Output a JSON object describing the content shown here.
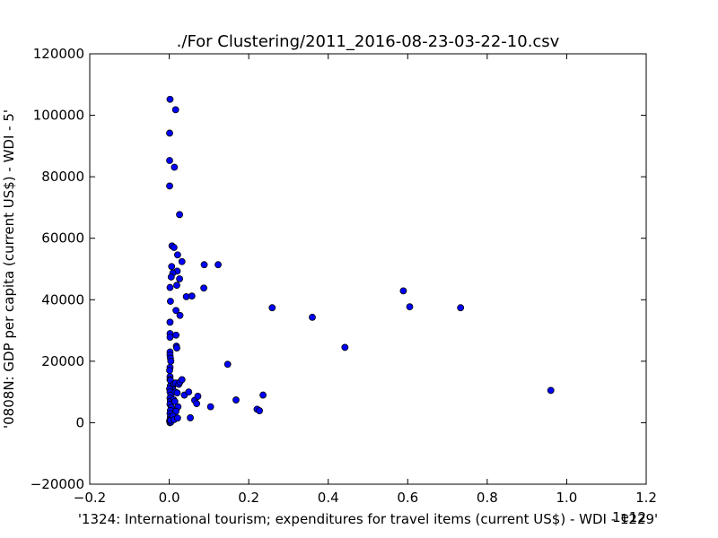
{
  "chart_data": {
    "type": "scatter",
    "title": "./For Clustering/2011_2016-08-23-03-22-10.csv",
    "xlabel": "'1324: International tourism; expenditures for travel items  (current US$) - WDI - 1229'",
    "ylabel": "'0808N: GDP per capita  (current US$) - WDI - 5'",
    "x_offset_label": "1e12",
    "xlim": [
      -0.2,
      1.2
    ],
    "ylim": [
      -20000,
      120000
    ],
    "x_ticks": [
      "−0.2",
      "0.0",
      "0.2",
      "0.4",
      "0.6",
      "0.8",
      "1.0",
      "1.2"
    ],
    "y_ticks": [
      "−20000",
      "0",
      "20000",
      "40000",
      "60000",
      "80000",
      "100000",
      "120000"
    ],
    "grid": false,
    "marker_color": "#0000ff",
    "points": [
      [
        0.002,
        105200
      ],
      [
        0.016,
        101800
      ],
      [
        0.001,
        94200
      ],
      [
        0.001,
        85300
      ],
      [
        0.013,
        83100
      ],
      [
        0.001,
        77000
      ],
      [
        0.026,
        67700
      ],
      [
        0.007,
        57500
      ],
      [
        0.012,
        57000
      ],
      [
        0.021,
        54600
      ],
      [
        0.032,
        52400
      ],
      [
        0.088,
        51400
      ],
      [
        0.123,
        51400
      ],
      [
        0.006,
        50800
      ],
      [
        0.02,
        49300
      ],
      [
        0.009,
        48700
      ],
      [
        0.005,
        47400
      ],
      [
        0.026,
        46800
      ],
      [
        0.019,
        44700
      ],
      [
        0.002,
        44000
      ],
      [
        0.087,
        43800
      ],
      [
        0.043,
        41000
      ],
      [
        0.057,
        41200
      ],
      [
        0.003,
        39500
      ],
      [
        0.017,
        36500
      ],
      [
        0.027,
        34900
      ],
      [
        0.002,
        32700
      ],
      [
        0.002,
        29000
      ],
      [
        0.002,
        27800
      ],
      [
        0.017,
        28500
      ],
      [
        0.018,
        24900
      ],
      [
        0.019,
        24300
      ],
      [
        0.002,
        23000
      ],
      [
        0.002,
        22000
      ],
      [
        0.003,
        21000
      ],
      [
        0.004,
        20000
      ],
      [
        0.002,
        18000
      ],
      [
        0.001,
        17000
      ],
      [
        0.002,
        15000
      ],
      [
        0.002,
        14000
      ],
      [
        0.006,
        13000
      ],
      [
        0.003,
        12000
      ],
      [
        0.008,
        11500
      ],
      [
        0.001,
        11000
      ],
      [
        0.002,
        10000
      ],
      [
        0.004,
        9000
      ],
      [
        0.002,
        8000
      ],
      [
        0.003,
        7000
      ],
      [
        0.002,
        6000
      ],
      [
        0.005,
        5000
      ],
      [
        0.003,
        4000
      ],
      [
        0.002,
        3000
      ],
      [
        0.003,
        2000
      ],
      [
        0.002,
        1000
      ],
      [
        0.001,
        500
      ],
      [
        0.002,
        0
      ],
      [
        0.004,
        200
      ],
      [
        0.003,
        800
      ],
      [
        0.003,
        13800
      ],
      [
        0.012,
        12600
      ],
      [
        0.016,
        12900
      ],
      [
        0.024,
        12500
      ],
      [
        0.027,
        13200
      ],
      [
        0.032,
        14000
      ],
      [
        0.015,
        10000
      ],
      [
        0.02,
        9700
      ],
      [
        0.038,
        9000
      ],
      [
        0.049,
        10000
      ],
      [
        0.064,
        7300
      ],
      [
        0.072,
        8600
      ],
      [
        0.069,
        6200
      ],
      [
        0.011,
        7500
      ],
      [
        0.014,
        6900
      ],
      [
        0.022,
        5200
      ],
      [
        0.017,
        3700
      ],
      [
        0.009,
        2200
      ],
      [
        0.012,
        1000
      ],
      [
        0.021,
        1500
      ],
      [
        0.053,
        1600
      ],
      [
        0.104,
        5200
      ],
      [
        0.147,
        19000
      ],
      [
        0.168,
        7400
      ],
      [
        0.221,
        4400
      ],
      [
        0.227,
        3900
      ],
      [
        0.236,
        9000
      ],
      [
        0.259,
        37400
      ],
      [
        0.36,
        34300
      ],
      [
        0.442,
        24500
      ],
      [
        0.589,
        42900
      ],
      [
        0.605,
        37700
      ],
      [
        0.733,
        37400
      ],
      [
        0.96,
        10500
      ]
    ]
  }
}
